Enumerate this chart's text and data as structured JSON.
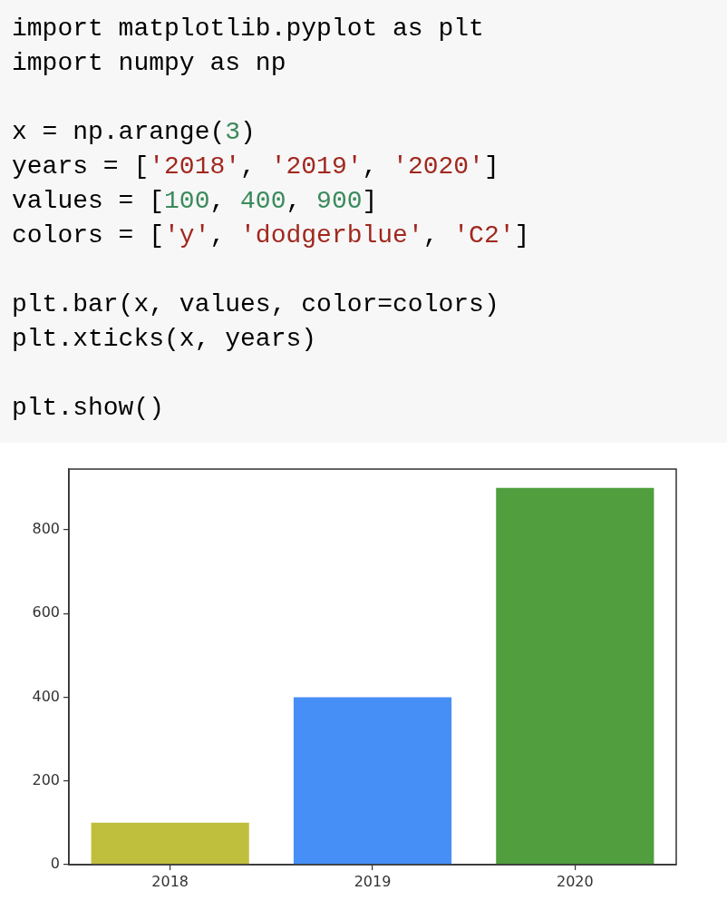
{
  "chart_data": {
    "type": "bar",
    "annotations": [
      "import matplotlib.pyplot as plt\nimport numpy as np\n\nx = np.arange(3)\nyears = ['2018', '2019', '2020']\nvalues = [100, 400, 900]\ncolors = ['y', 'dodgerblue', 'C2']\n\nplt.bar(x, values, color=colors)\nplt.xticks(x, years)\n\nplt.show()"
    ],
    "categories": [
      "2018",
      "2019",
      "2020"
    ],
    "values": [
      100,
      400,
      900
    ],
    "colors": [
      "#c0bf3d",
      "#468ff6",
      "#519e3f"
    ],
    "ylim": [
      0,
      945
    ],
    "yticks": [
      0,
      200,
      400,
      600,
      800
    ]
  }
}
